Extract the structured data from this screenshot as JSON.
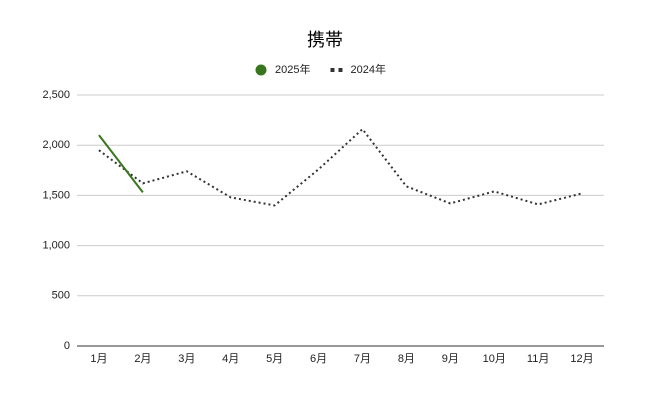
{
  "chart_data": {
    "type": "line",
    "title": "携帯",
    "categories": [
      "1月",
      "2月",
      "3月",
      "4月",
      "5月",
      "6月",
      "7月",
      "8月",
      "9月",
      "10月",
      "11月",
      "12月"
    ],
    "series": [
      {
        "name": "2025年",
        "color": "#38761d",
        "style": "solid",
        "values": [
          2100,
          1530,
          null,
          null,
          null,
          null,
          null,
          null,
          null,
          null,
          null,
          null
        ]
      },
      {
        "name": "2024年",
        "color": "#333333",
        "style": "dotted",
        "values": [
          1950,
          1620,
          1740,
          1480,
          1400,
          1760,
          2160,
          1590,
          1420,
          1540,
          1410,
          1520
        ]
      }
    ],
    "ylim": [
      0,
      2500
    ],
    "yticks": [
      0,
      500,
      {
        "value": 1000,
        "label": "1,000"
      },
      {
        "value": 1500,
        "label": "1,500"
      },
      {
        "value": 2000,
        "label": "2,000"
      },
      {
        "value": 2500,
        "label": "2,500"
      }
    ],
    "grid": true,
    "legend": "top"
  }
}
